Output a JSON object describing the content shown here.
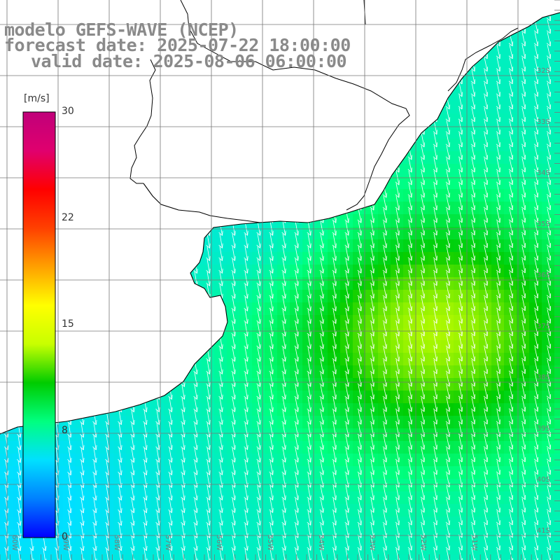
{
  "title": {
    "line1": "modelo GEFS-WAVE (NCEP)",
    "line2": "forecast date: 2025-07-22 18:00:00",
    "line3": "valid date: 2025-08-06 06:00:00"
  },
  "colorbar": {
    "unit": "[m/s]",
    "ticks": [
      "30",
      "22",
      "15",
      "8",
      "0"
    ],
    "min": 0,
    "max": 30,
    "colors": [
      "#0000ff",
      "#0080ff",
      "#00e0ff",
      "#00ff80",
      "#00cc00",
      "#c8ff00",
      "#ffff00",
      "#ffa000",
      "#ff4000",
      "#ff0000",
      "#e0006e",
      "#c0007a"
    ]
  },
  "grid": {
    "lat_labels": [
      "32S",
      "33S",
      "34S",
      "35S",
      "36S",
      "37S",
      "38S",
      "39S",
      "40S",
      "41S"
    ],
    "lon_labels": [
      "60W",
      "59W",
      "58W",
      "57W",
      "56W",
      "55W",
      "54W",
      "53W",
      "52W",
      "51W"
    ]
  },
  "wind_field": {
    "variable": "wind speed",
    "prevailing_direction": "from NW",
    "approx_min": 5,
    "approx_max": 13
  }
}
